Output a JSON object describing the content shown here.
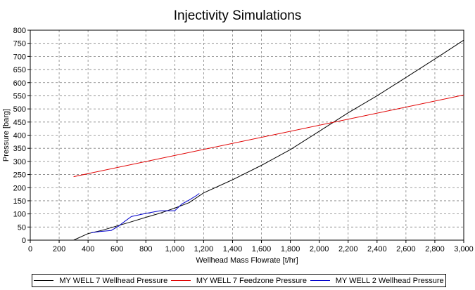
{
  "chart_data": {
    "type": "line",
    "title": "Injectivity Simulations",
    "xlabel": "Wellhead Mass Flowrate [t/hr]",
    "ylabel": "Pressure [barg]",
    "xlim": [
      0,
      3000
    ],
    "ylim": [
      0,
      800
    ],
    "xticks": [
      0,
      200,
      400,
      600,
      800,
      1000,
      1200,
      1400,
      1600,
      1800,
      2000,
      2200,
      2400,
      2600,
      2800,
      3000
    ],
    "xtick_labels": [
      "0",
      "200",
      "400",
      "600",
      "800",
      "1,000",
      "1,200",
      "1,400",
      "1,600",
      "1,800",
      "2,000",
      "2,200",
      "2,400",
      "2,600",
      "2,800",
      "3,000"
    ],
    "yticks": [
      0,
      50,
      100,
      150,
      200,
      250,
      300,
      350,
      400,
      450,
      500,
      550,
      600,
      650,
      700,
      750,
      800
    ],
    "ytick_labels": [
      "0",
      "50",
      "100",
      "150",
      "200",
      "250",
      "300",
      "350",
      "400",
      "450",
      "500",
      "550",
      "600",
      "650",
      "700",
      "750",
      "800"
    ],
    "grid": true,
    "legend_position": "bottom",
    "series": [
      {
        "name": "MY WELL 7 Wellhead Pressure",
        "color": "#000000",
        "x": [
          300,
          400,
          500,
          600,
          700,
          800,
          900,
          1000,
          1100,
          1200,
          1400,
          1600,
          1800,
          2000,
          2200,
          2400,
          2600,
          2800,
          3000
        ],
        "y": [
          0,
          25,
          38,
          54,
          70,
          87,
          103,
          122,
          143,
          180,
          230,
          285,
          345,
          415,
          485,
          550,
          620,
          690,
          762
        ]
      },
      {
        "name": "MY WELL 7 Feedzone Pressure",
        "color": "#e00000",
        "x": [
          300,
          3000
        ],
        "y": [
          242,
          553
        ]
      },
      {
        "name": "MY WELL 2 Wellhead Pressure",
        "color": "#0000cc",
        "x": [
          420,
          480,
          560,
          610,
          650,
          700,
          800,
          900,
          1000,
          1050,
          1100,
          1150,
          1170
        ],
        "y": [
          28,
          33,
          37,
          53,
          70,
          90,
          102,
          112,
          112,
          138,
          153,
          170,
          178
        ]
      }
    ]
  }
}
